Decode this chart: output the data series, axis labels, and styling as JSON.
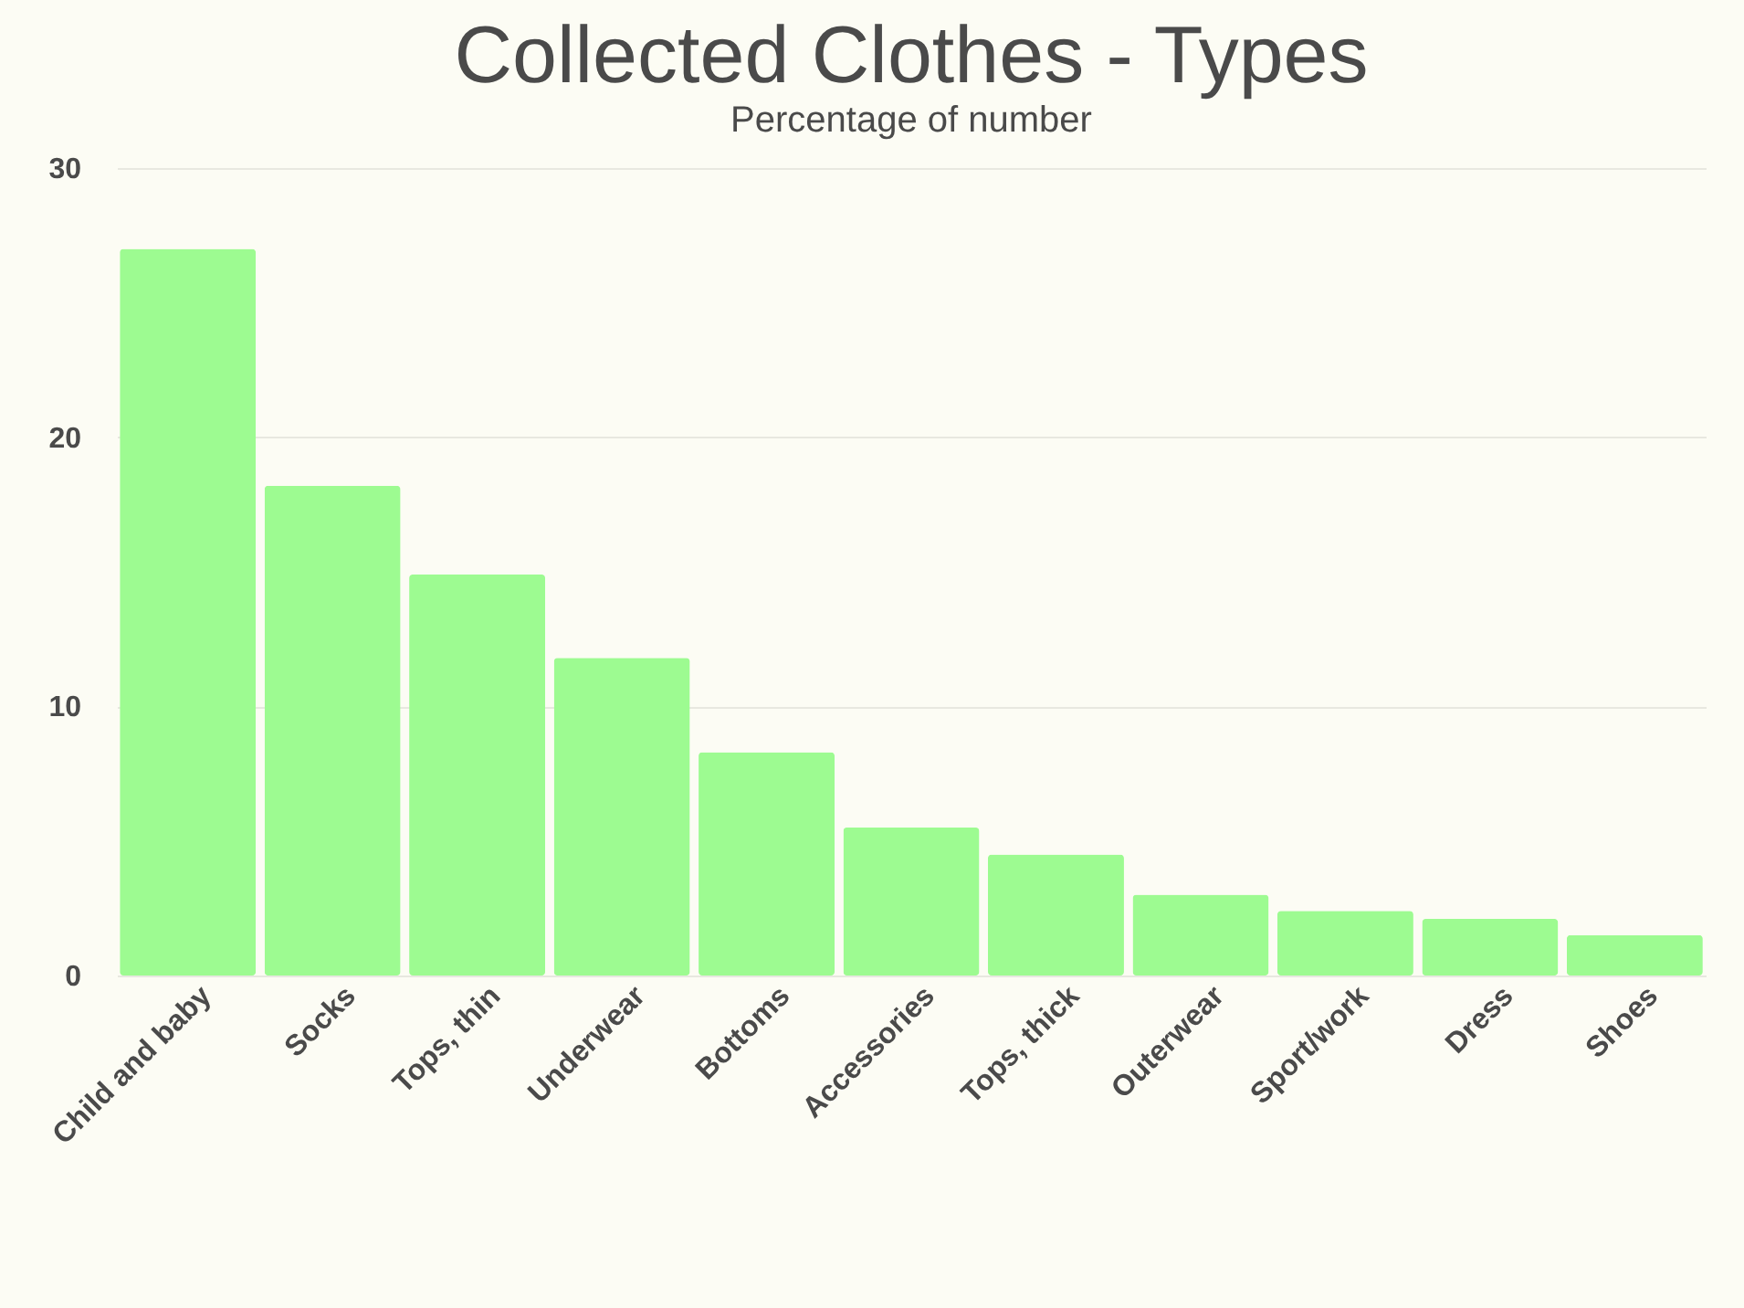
{
  "chart_data": {
    "type": "bar",
    "title": "Collected Clothes - Types",
    "subtitle": "Percentage of number",
    "categories": [
      "Child and baby",
      "Socks",
      "Tops, thin",
      "Underwear",
      "Bottoms",
      "Accessories",
      "Tops, thick",
      "Outerwear",
      "Sport/work",
      "Dress",
      "Shoes"
    ],
    "values": [
      27.0,
      18.2,
      14.9,
      11.8,
      8.3,
      5.5,
      4.5,
      3.0,
      2.4,
      2.1,
      1.5
    ],
    "color": "#9dfb91",
    "ylim": [
      0,
      30
    ],
    "yticks": [
      0,
      10,
      20,
      30
    ],
    "grid": "y"
  }
}
